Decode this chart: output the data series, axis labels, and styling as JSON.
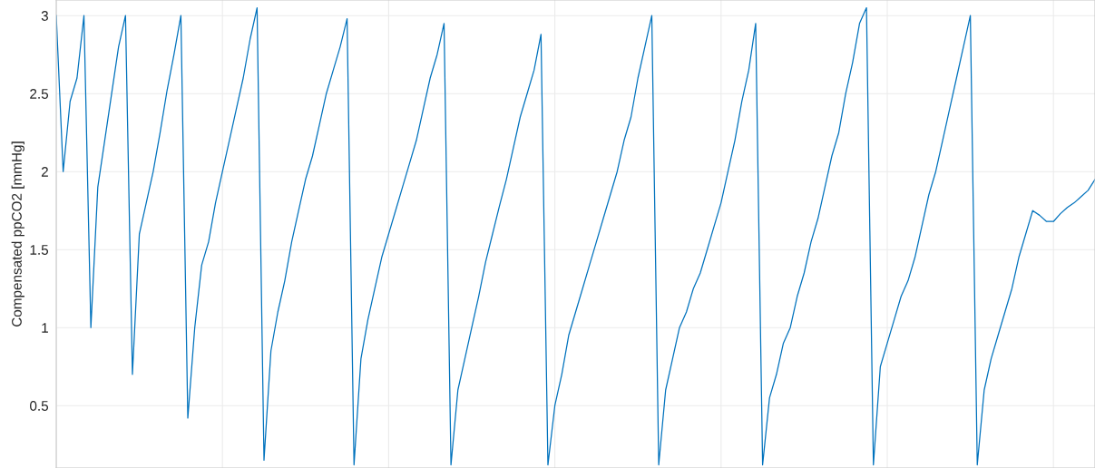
{
  "chart_data": {
    "type": "line",
    "ylabel": "Compensated ppCO2 [mmHg]",
    "categories": [
      null,
      null,
      null,
      null,
      null,
      null,
      null,
      null,
      null,
      null,
      null,
      null,
      null,
      null,
      null,
      null,
      null,
      null,
      null,
      null,
      null,
      null,
      null,
      null,
      null,
      null,
      null,
      null,
      null,
      null,
      null,
      null,
      null,
      null,
      null,
      null,
      null,
      null,
      null,
      null,
      null,
      null,
      null,
      null,
      null,
      null,
      null,
      null,
      null,
      null,
      null,
      null,
      null,
      null,
      null,
      null,
      null,
      null,
      null,
      null,
      null,
      null,
      null,
      null,
      null,
      null,
      null,
      null,
      null,
      null,
      null,
      null,
      null,
      null,
      null,
      null,
      null,
      null,
      null,
      null,
      null,
      null,
      null,
      null,
      null,
      null,
      null,
      null,
      null,
      null,
      null,
      null,
      null,
      null,
      null,
      null,
      null,
      null,
      null,
      null,
      null,
      null,
      null,
      null,
      null,
      null,
      null,
      null,
      null,
      null,
      null,
      null,
      null,
      null,
      null,
      null,
      null,
      null,
      null,
      null,
      null,
      null,
      null,
      null,
      null,
      null,
      null,
      null,
      null,
      null,
      null,
      null,
      null,
      null,
      null,
      null,
      null,
      null,
      null,
      null,
      null,
      null,
      null,
      null,
      null,
      null,
      null,
      null,
      null,
      null,
      null
    ],
    "ylim": [
      0.1,
      3.1
    ],
    "yticks": [
      0.5,
      1,
      1.5,
      2,
      2.5,
      3
    ],
    "grid": true,
    "series": [
      {
        "color": "#0072bd",
        "values": [
          3.0,
          2.0,
          2.45,
          2.6,
          3.0,
          1.0,
          1.9,
          2.2,
          2.5,
          2.8,
          3.0,
          0.7,
          1.6,
          1.8,
          2.0,
          2.25,
          2.52,
          2.75,
          3.0,
          0.42,
          1.0,
          1.4,
          1.55,
          1.8,
          2.0,
          2.2,
          2.4,
          2.6,
          2.85,
          3.05,
          0.15,
          0.85,
          1.1,
          1.3,
          1.55,
          1.75,
          1.95,
          2.1,
          2.3,
          2.5,
          2.65,
          2.8,
          2.98,
          0.12,
          0.8,
          1.05,
          1.25,
          1.45,
          1.6,
          1.75,
          1.9,
          2.05,
          2.2,
          2.4,
          2.6,
          2.75,
          2.95,
          0.12,
          0.6,
          0.8,
          1.0,
          1.2,
          1.42,
          1.6,
          1.78,
          1.95,
          2.15,
          2.35,
          2.5,
          2.65,
          2.88,
          0.12,
          0.5,
          0.7,
          0.95,
          1.1,
          1.25,
          1.4,
          1.55,
          1.7,
          1.85,
          2.0,
          2.2,
          2.35,
          2.6,
          2.8,
          3.0,
          0.12,
          0.6,
          0.8,
          1.0,
          1.1,
          1.25,
          1.35,
          1.5,
          1.65,
          1.8,
          2.0,
          2.2,
          2.45,
          2.65,
          2.95,
          0.12,
          0.55,
          0.7,
          0.9,
          1.0,
          1.2,
          1.35,
          1.55,
          1.7,
          1.9,
          2.1,
          2.25,
          2.5,
          2.7,
          2.95,
          3.05,
          0.12,
          0.75,
          0.9,
          1.05,
          1.2,
          1.3,
          1.45,
          1.65,
          1.85,
          2.0,
          2.2,
          2.4,
          2.6,
          2.8,
          3.0,
          0.12,
          0.6,
          0.8,
          0.95,
          1.1,
          1.25,
          1.45,
          1.6,
          1.75,
          1.72,
          1.68,
          1.68,
          1.73,
          1.77,
          1.8,
          1.84,
          1.88,
          1.95
        ]
      }
    ]
  }
}
